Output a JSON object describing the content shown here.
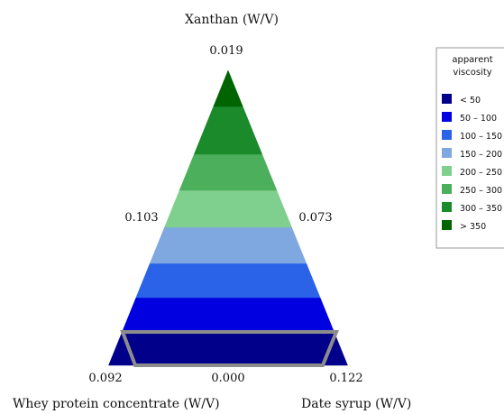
{
  "chart_data": {
    "type": "ternary-contour",
    "vertices": {
      "top": {
        "label": "Xanthan (W/V)",
        "value": "0.019"
      },
      "bottom_left": {
        "label": "Whey protein concentrate (W/V)",
        "value": "0.092"
      },
      "bottom_right": {
        "label": "Date syrup (W/V)",
        "value": "0.122"
      }
    },
    "edge_labels": {
      "left": "0.103",
      "right": "0.073",
      "bottom": "0.000"
    },
    "legend": {
      "title": [
        "apparent",
        "viscosity"
      ],
      "entries": [
        {
          "label": "<  50",
          "color": "#00008b"
        },
        {
          "label": "50 – 100",
          "color": "#0000e0"
        },
        {
          "label": "100 – 150",
          "color": "#2a62e8"
        },
        {
          "label": "150 – 200",
          "color": "#7fa8e0"
        },
        {
          "label": "200 – 250",
          "color": "#7fcf8f"
        },
        {
          "label": "250 – 300",
          "color": "#4caf5c"
        },
        {
          "label": "300 – 350",
          "color": "#1a8a2a"
        },
        {
          "label": ">  350",
          "color": "#006400"
        }
      ]
    },
    "contour_bands_bottom_to_top": [
      {
        "range": "<  50",
        "color": "#00008b"
      },
      {
        "range": "50 – 100",
        "color": "#0000e0"
      },
      {
        "range": "100 – 150",
        "color": "#2a62e8"
      },
      {
        "range": "150 – 200",
        "color": "#7fa8e0"
      },
      {
        "range": "200 – 250",
        "color": "#7fcf8f"
      },
      {
        "range": "250 – 300",
        "color": "#4caf5c"
      },
      {
        "range": "300 – 350",
        "color": "#1a8a2a"
      },
      {
        "range": ">  350",
        "color": "#006400"
      }
    ],
    "highlight_region": {
      "present": true,
      "color": "#8c8c8c"
    }
  }
}
